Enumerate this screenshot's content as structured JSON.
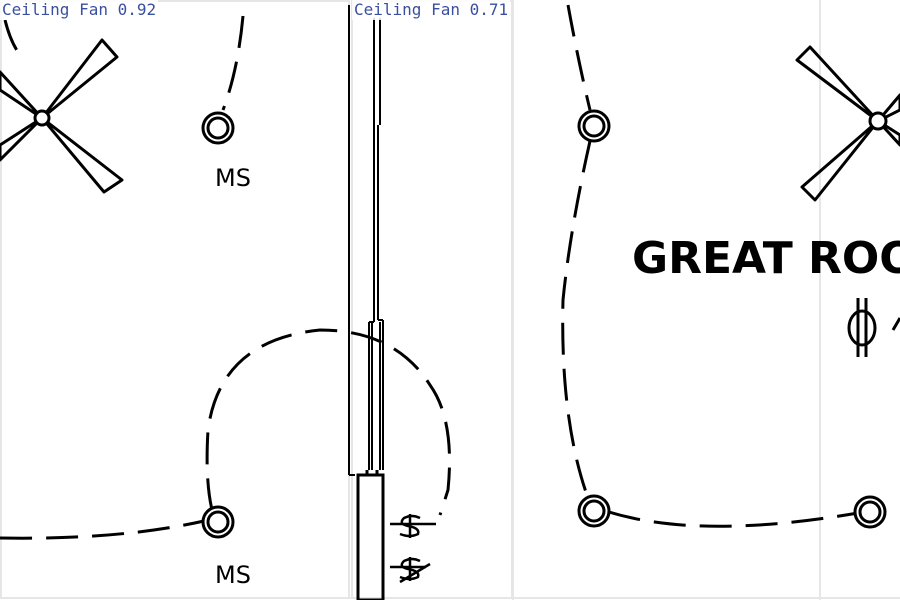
{
  "detections": [
    {
      "label": "Ceiling Fan 0.92"
    },
    {
      "label": "Ceiling Fan 0.71"
    }
  ],
  "plan": {
    "switch_label_1": "MS",
    "switch_label_2": "MS",
    "room_name": "GREAT ROO"
  },
  "colors": {
    "lines": "#000000",
    "panel_border": "#e6e6e6",
    "label_text": "#3a4fa0"
  }
}
